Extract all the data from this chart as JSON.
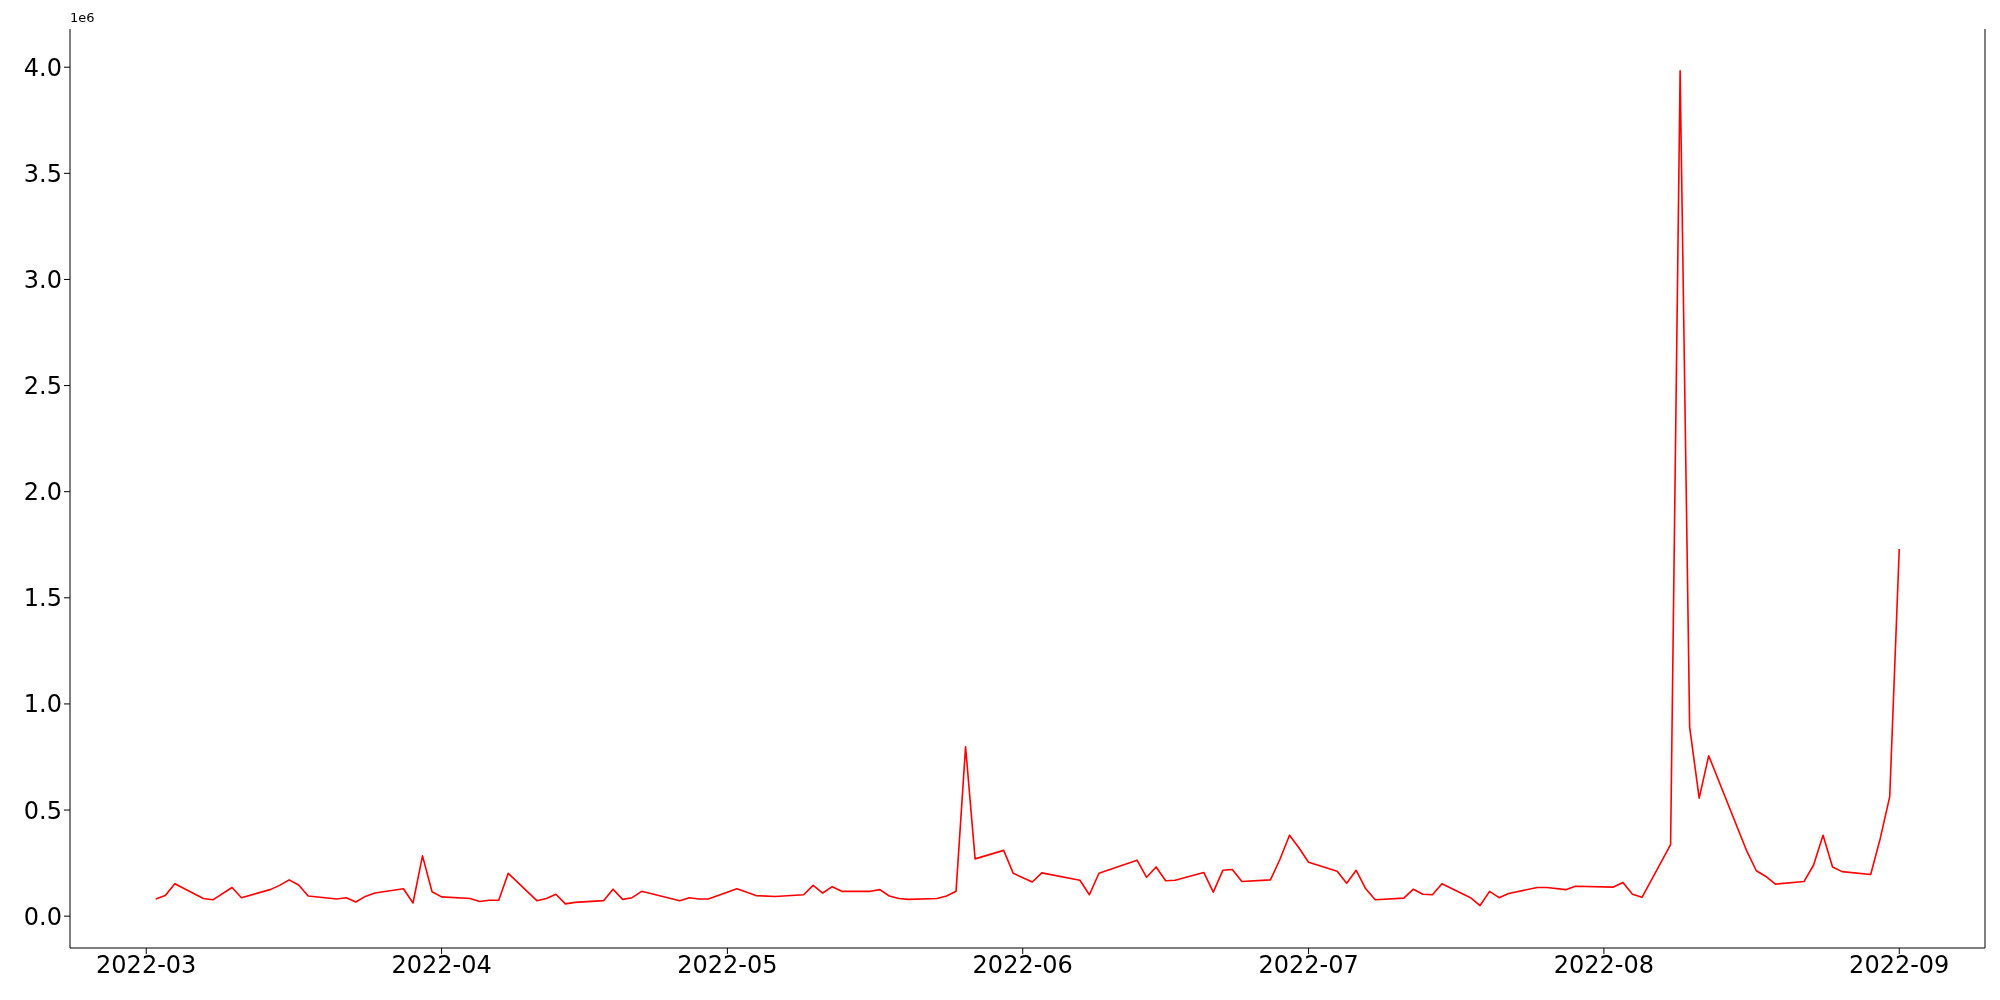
{
  "chart_data": {
    "type": "line",
    "annotations": [
      "1e6"
    ],
    "x": [
      "2022-03-02",
      "2022-03-03",
      "2022-03-04",
      "2022-03-07",
      "2022-03-08",
      "2022-03-10",
      "2022-03-11",
      "2022-03-14",
      "2022-03-15",
      "2022-03-16",
      "2022-03-17",
      "2022-03-18",
      "2022-03-21",
      "2022-03-22",
      "2022-03-23",
      "2022-03-24",
      "2022-03-25",
      "2022-03-28",
      "2022-03-29",
      "2022-03-30",
      "2022-03-31",
      "2022-04-01",
      "2022-04-04",
      "2022-04-05",
      "2022-04-06",
      "2022-04-07",
      "2022-04-08",
      "2022-04-11",
      "2022-04-12",
      "2022-04-13",
      "2022-04-14",
      "2022-04-15",
      "2022-04-18",
      "2022-04-19",
      "2022-04-20",
      "2022-04-21",
      "2022-04-22",
      "2022-04-26",
      "2022-04-27",
      "2022-04-28",
      "2022-04-29",
      "2022-05-02",
      "2022-05-04",
      "2022-05-06",
      "2022-05-09",
      "2022-05-10",
      "2022-05-11",
      "2022-05-12",
      "2022-05-13",
      "2022-05-16",
      "2022-05-17",
      "2022-05-18",
      "2022-05-19",
      "2022-05-20",
      "2022-05-23",
      "2022-05-24",
      "2022-05-25",
      "2022-05-26",
      "2022-05-27",
      "2022-05-30",
      "2022-05-31",
      "2022-06-02",
      "2022-06-03",
      "2022-06-07",
      "2022-06-08",
      "2022-06-09",
      "2022-06-13",
      "2022-06-14",
      "2022-06-15",
      "2022-06-16",
      "2022-06-17",
      "2022-06-20",
      "2022-06-21",
      "2022-06-22",
      "2022-06-23",
      "2022-06-24",
      "2022-06-27",
      "2022-06-28",
      "2022-06-29",
      "2022-06-30",
      "2022-07-01",
      "2022-07-04",
      "2022-07-05",
      "2022-07-06",
      "2022-07-07",
      "2022-07-08",
      "2022-07-11",
      "2022-07-12",
      "2022-07-13",
      "2022-07-14",
      "2022-07-15",
      "2022-07-18",
      "2022-07-19",
      "2022-07-20",
      "2022-07-21",
      "2022-07-22",
      "2022-07-25",
      "2022-07-26",
      "2022-07-28",
      "2022-07-29",
      "2022-08-02",
      "2022-08-03",
      "2022-08-04",
      "2022-08-05",
      "2022-08-08",
      "2022-08-09",
      "2022-08-10",
      "2022-08-11",
      "2022-08-12",
      "2022-08-16",
      "2022-08-17",
      "2022-08-18",
      "2022-08-19",
      "2022-08-22",
      "2022-08-23",
      "2022-08-24",
      "2022-08-25",
      "2022-08-26",
      "2022-08-29",
      "2022-08-30",
      "2022-08-31",
      "2022-09-01"
    ],
    "series": [
      {
        "color": "#ff0000",
        "values": [
          0.081,
          0.097,
          0.153,
          0.083,
          0.077,
          0.135,
          0.087,
          0.125,
          0.145,
          0.171,
          0.147,
          0.095,
          0.081,
          0.087,
          0.067,
          0.093,
          0.109,
          0.129,
          0.062,
          0.284,
          0.115,
          0.091,
          0.083,
          0.069,
          0.075,
          0.075,
          0.202,
          0.073,
          0.083,
          0.103,
          0.058,
          0.065,
          0.073,
          0.127,
          0.079,
          0.087,
          0.117,
          0.073,
          0.087,
          0.081,
          0.081,
          0.129,
          0.097,
          0.093,
          0.101,
          0.145,
          0.109,
          0.139,
          0.117,
          0.117,
          0.125,
          0.095,
          0.083,
          0.079,
          0.083,
          0.095,
          0.117,
          0.798,
          0.27,
          0.31,
          0.202,
          0.161,
          0.204,
          0.169,
          0.101,
          0.202,
          0.264,
          0.183,
          0.232,
          0.167,
          0.169,
          0.206,
          0.113,
          0.216,
          0.22,
          0.163,
          0.171,
          0.268,
          0.381,
          0.321,
          0.254,
          0.212,
          0.155,
          0.216,
          0.129,
          0.077,
          0.085,
          0.127,
          0.103,
          0.101,
          0.153,
          0.087,
          0.05,
          0.117,
          0.087,
          0.107,
          0.135,
          0.135,
          0.125,
          0.141,
          0.137,
          0.159,
          0.103,
          0.089,
          0.337,
          3.983,
          0.891,
          0.556,
          0.756,
          0.306,
          0.214,
          0.187,
          0.151,
          0.163,
          0.24,
          0.381,
          0.232,
          0.21,
          0.196,
          0.365,
          0.563,
          1.73
        ]
      }
    ],
    "xlim": [
      "2022-02-21",
      "2022-09-10"
    ],
    "xticks": [
      {
        "value": "2022-03-01",
        "label": "2022-03"
      },
      {
        "value": "2022-04-01",
        "label": "2022-04"
      },
      {
        "value": "2022-05-01",
        "label": "2022-05"
      },
      {
        "value": "2022-06-01",
        "label": "2022-06"
      },
      {
        "value": "2022-07-01",
        "label": "2022-07"
      },
      {
        "value": "2022-08-01",
        "label": "2022-08"
      },
      {
        "value": "2022-09-01",
        "label": "2022-09"
      }
    ],
    "ylim": [
      -0.15,
      4.18
    ],
    "yticks": [
      {
        "value": 0,
        "label": "0.0"
      },
      {
        "value": 0.5,
        "label": "0.5"
      },
      {
        "value": 1,
        "label": "1.0"
      },
      {
        "value": 1.5,
        "label": "1.5"
      },
      {
        "value": 2,
        "label": "2.0"
      },
      {
        "value": 2.5,
        "label": "2.5"
      },
      {
        "value": 3,
        "label": "3.0"
      },
      {
        "value": 3.5,
        "label": "3.5"
      },
      {
        "value": 4,
        "label": "4.0"
      }
    ]
  }
}
